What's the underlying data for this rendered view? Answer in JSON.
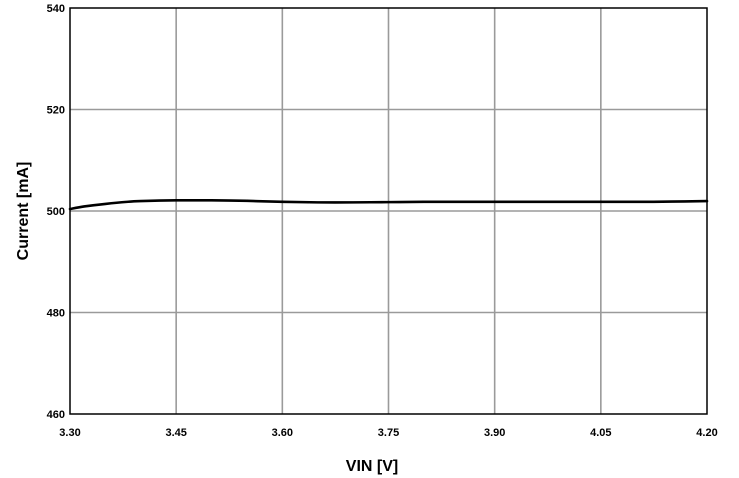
{
  "chart_data": {
    "type": "line",
    "title": "",
    "xlabel": "VIN [V]",
    "ylabel": "Current [mA]",
    "xlim": [
      3.3,
      4.2
    ],
    "ylim": [
      460,
      540
    ],
    "x_ticks": [
      "3.30",
      "3.45",
      "3.60",
      "3.75",
      "3.90",
      "4.05",
      "4.20"
    ],
    "y_ticks": [
      "460",
      "480",
      "500",
      "520",
      "540"
    ],
    "grid": true,
    "legend": "none",
    "series": [
      {
        "color": "#000000",
        "x": [
          3.3,
          3.32,
          3.35,
          3.38,
          3.4,
          3.45,
          3.5,
          3.55,
          3.6,
          3.65,
          3.7,
          3.75,
          3.8,
          3.9,
          4.0,
          4.05,
          4.1,
          4.15,
          4.2
        ],
        "y": [
          500.4,
          500.9,
          501.4,
          501.8,
          501.95,
          502.1,
          502.1,
          502.0,
          501.8,
          501.7,
          501.7,
          501.75,
          501.8,
          501.8,
          501.8,
          501.8,
          501.8,
          501.85,
          501.95
        ]
      }
    ]
  }
}
